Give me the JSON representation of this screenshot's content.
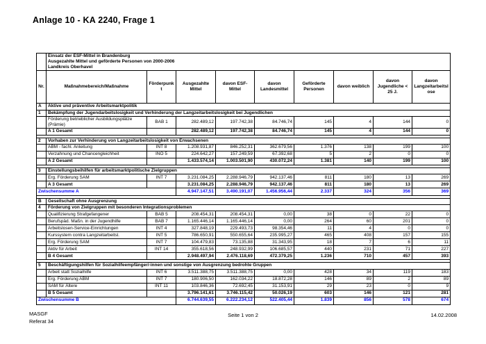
{
  "doc_title": "Anlage 10 - KA 2240, Frage 1",
  "colors": {
    "subtotal_text": "#0000ff",
    "border": "#000000",
    "text": "#000000",
    "page_bg": "#ffffff"
  },
  "table": {
    "title_lines": [
      "Einsatz der ESF-Mittel in Brandenburg",
      "Ausgezahlte Mittel und geförderte Personen von 2000-2006",
      "Landkreis Oberhavel"
    ],
    "columns": [
      "Nr.",
      "Maßnahmebereich/Maßnahme",
      "Förderpunkt",
      "Ausgezahlte Mittel",
      "davon ESF-Mittel",
      "davon Landesmittel",
      "Geförderte Personen",
      "davon weiblich",
      "davon Jugendliche < 25 J.",
      "davon Langzeitarbeitslose"
    ],
    "rows": [
      {
        "type": "section",
        "nr": "A",
        "label": "Aktive und präventive Arbeitsmarktpolitik"
      },
      {
        "type": "section",
        "nr": "1",
        "label": "Bekämpfung der Jugendarbeitslosigkeit und Verhinderung der Langzeitarbeitslosigkeit bei Jugendlichen"
      },
      {
        "type": "data",
        "label": "Förderung betrieblicher Ausbildungsplätze (Prämie)",
        "foerderpunkt": "BAB 1",
        "values": [
          "282.489,12",
          "197.742,38",
          "84.746,74",
          "145",
          "4",
          "144",
          "0"
        ]
      },
      {
        "type": "total",
        "label": "A 1 Gesamt",
        "values": [
          "282.489,12",
          "197.742,38",
          "84.746,74",
          "145",
          "4",
          "144",
          "0"
        ]
      },
      {
        "type": "spacer"
      },
      {
        "type": "section",
        "nr": "2",
        "label": "Vorhaben zur Verhinderung von Langzeitarbeitslosigkeit von Erwachsenen"
      },
      {
        "type": "data",
        "label": "ABM - fachl. Anleitung",
        "foerderpunkt": "INT 8",
        "values": [
          "1.208.931,87",
          "846.252,31",
          "362.679,56",
          "1.376",
          "138",
          "199",
          "100"
        ]
      },
      {
        "type": "data",
        "label": "Verzahnung und Chancengleichheit",
        "foerderpunkt": "INO 5",
        "values": [
          "224.642,27",
          "157.249,59",
          "67.392,68",
          "5",
          "2",
          "0",
          "0"
        ]
      },
      {
        "type": "total",
        "label": "A 2 Gesamt",
        "values": [
          "1.433.574,14",
          "1.003.501,90",
          "430.072,24",
          "1.381",
          "140",
          "199",
          "100"
        ]
      },
      {
        "type": "spacer"
      },
      {
        "type": "section",
        "nr": "3",
        "label": "Einstellungsbeihilfen für arbeitsmarktpolitische Zielgruppen"
      },
      {
        "type": "data",
        "label": "Erg. Förderung SAM",
        "foerderpunkt": "INT 7",
        "values": [
          "3.231.084,25",
          "2.288.946,79",
          "942.137,46",
          "811",
          "180",
          "13",
          "269"
        ]
      },
      {
        "type": "total",
        "label": "A 3 Gesamt",
        "values": [
          "3.231.084,25",
          "2.288.946,79",
          "942.137,46",
          "811",
          "180",
          "13",
          "269"
        ]
      },
      {
        "type": "subtotal",
        "label": "Zwischensumme A",
        "values": [
          "4.947.147,51",
          "3.490.191,07",
          "1.456.956,44",
          "2.337",
          "324",
          "356",
          "369"
        ]
      },
      {
        "type": "spacer"
      },
      {
        "type": "section",
        "nr": "B",
        "label": "Gesellschaft ohne Ausgrenzung"
      },
      {
        "type": "section",
        "nr": "4",
        "label": "Förderung von Zielgruppen mit besonderen Integrationsproblemen"
      },
      {
        "type": "data",
        "label": "Qualifizierung Strafgefangener",
        "foerderpunkt": "BAB 5",
        "values": [
          "208.454,31",
          "208.454,31",
          "0,00",
          "38",
          "0",
          "22",
          "0"
        ]
      },
      {
        "type": "data",
        "label": "Berufspäd. Maßn. in der Jugendhilfe",
        "foerderpunkt": "BAB 7",
        "values": [
          "1.165.446,14",
          "1.165.446,14",
          "0,00",
          "264",
          "60",
          "201",
          "0"
        ]
      },
      {
        "type": "data",
        "label": "Arbeitslosen-Service-Einrichtungen",
        "foerderpunkt": "INT 4",
        "values": [
          "327.848,19",
          "229.493,73",
          "98.354,46",
          "11",
          "4",
          "0",
          "0"
        ]
      },
      {
        "type": "data",
        "label": "Kurssystem contra Langzeitarbeitsl.",
        "foerderpunkt": "INT 5",
        "values": [
          "786.650,91",
          "550.655,64",
          "235.995,27",
          "465",
          "408",
          "157",
          "155"
        ]
      },
      {
        "type": "data",
        "label": "Erg. Förderung SAM",
        "foerderpunkt": "INT 7",
        "values": [
          "104.479,83",
          "73.135,88",
          "31.343,95",
          "18",
          "7",
          "6",
          "11"
        ]
      },
      {
        "type": "data",
        "label": "Aktiv für Arbeit",
        "foerderpunkt": "INT 14",
        "values": [
          "355.618,56",
          "248.932,99",
          "106.685,57",
          "440",
          "231",
          "71",
          "227"
        ]
      },
      {
        "type": "total",
        "label": "B 4 Gesamt",
        "values": [
          "2.948.497,94",
          "2.476.118,69",
          "472.379,25",
          "1.236",
          "710",
          "457",
          "393"
        ]
      },
      {
        "type": "spacer"
      },
      {
        "type": "section",
        "nr": "5",
        "label": "Beschäftigungshilfen für Sozialhilfeempfänger/-innen und sonstige von Ausgrenzung bedrohte Gruppen"
      },
      {
        "type": "data",
        "label": "Arbeit statt Sozialhilfe",
        "foerderpunkt": "INT 6",
        "values": [
          "3.511.388,75",
          "3.511.388,75",
          "0,00",
          "428",
          "34",
          "119",
          "183"
        ]
      },
      {
        "type": "data",
        "label": "Erg. Förderung ABM",
        "foerderpunkt": "INT 7",
        "values": [
          "180.906,50",
          "162.034,22",
          "18.872,28",
          "146",
          "89",
          "2",
          "89"
        ]
      },
      {
        "type": "data",
        "label": "SAM für Ältere",
        "foerderpunkt": "INT 11",
        "values": [
          "103.846,36",
          "72.692,45",
          "31.153,91",
          "29",
          "23",
          "0",
          "9"
        ]
      },
      {
        "type": "total",
        "label": "B 5 Gesamt",
        "values": [
          "3.796.141,61",
          "3.746.115,42",
          "50.026,19",
          "603",
          "146",
          "121",
          "281"
        ]
      },
      {
        "type": "subtotal",
        "label": "Zwischensumme B",
        "values": [
          "6.744.639,55",
          "6.222.234,12",
          "522.405,44",
          "1.839",
          "856",
          "578",
          "674"
        ]
      }
    ]
  },
  "footer": {
    "left_line1": "MASGF",
    "left_line2": "Referat 34",
    "center": "Seite 1 von 2",
    "right": "14.02.2008"
  }
}
